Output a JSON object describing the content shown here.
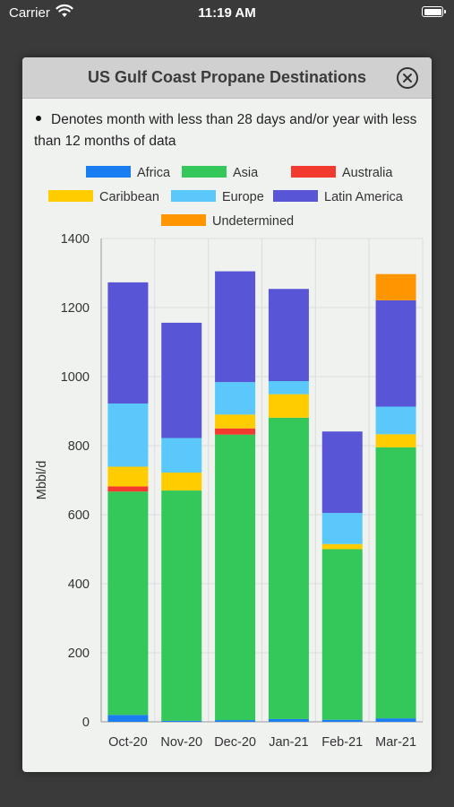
{
  "status_bar": {
    "carrier": "Carrier",
    "time": "11:19 AM"
  },
  "modal": {
    "title": "US Gulf Coast Propane Destinations",
    "note": "Denotes month with less than 28 days and/or year with less than 12 months of data"
  },
  "colors": {
    "Africa": "#1a7ef2",
    "Asia": "#34c759",
    "Australia": "#f23a2e",
    "Caribbean": "#ffcc00",
    "Europe": "#5ac8fa",
    "Latin America": "#5856d6",
    "Undetermined": "#ff9500"
  },
  "chart_data": {
    "type": "bar",
    "stacked": true,
    "categories": [
      "Oct-20",
      "Nov-20",
      "Dec-20",
      "Jan-21",
      "Feb-21",
      "Mar-21"
    ],
    "series": [
      {
        "name": "Africa",
        "values": [
          20,
          3,
          5,
          8,
          6,
          10
        ]
      },
      {
        "name": "Asia",
        "values": [
          647,
          667,
          827,
          873,
          494,
          785
        ]
      },
      {
        "name": "Australia",
        "values": [
          15,
          0,
          18,
          0,
          0,
          0
        ]
      },
      {
        "name": "Caribbean",
        "values": [
          57,
          52,
          40,
          68,
          15,
          38
        ]
      },
      {
        "name": "Europe",
        "values": [
          183,
          100,
          94,
          38,
          90,
          80
        ]
      },
      {
        "name": "Latin America",
        "values": [
          351,
          334,
          321,
          267,
          236,
          308
        ]
      },
      {
        "name": "Undetermined",
        "values": [
          0,
          0,
          0,
          0,
          0,
          76
        ]
      }
    ],
    "xlabel": "",
    "ylabel": "Mbbl/d",
    "ylim": [
      0,
      1400
    ],
    "yticks": [
      0,
      200,
      400,
      600,
      800,
      1000,
      1200,
      1400
    ],
    "grid": true,
    "legend_position": "top"
  }
}
